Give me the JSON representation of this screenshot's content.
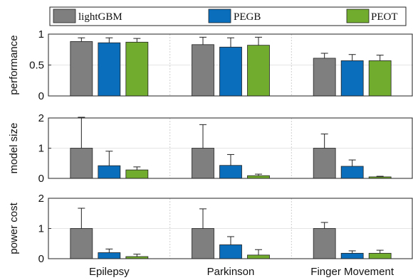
{
  "legend": {
    "items": [
      {
        "label": "lightGBM",
        "color": "#7f7f7f"
      },
      {
        "label": "PEGB",
        "color": "#0a6ebd"
      },
      {
        "label": "PEOT",
        "color": "#72ac2e"
      }
    ]
  },
  "chart_data": [
    {
      "type": "bar",
      "ylabel": "performance",
      "ylim": [
        0,
        1
      ],
      "yticks": [
        "0",
        "0.5",
        "1"
      ],
      "grid": true,
      "categories": [
        "Epilepsy",
        "Parkinson",
        "Finger Movement"
      ],
      "series": [
        {
          "name": "lightGBM",
          "values": [
            0.88,
            0.83,
            0.61
          ],
          "errors": [
            0.06,
            0.12,
            0.08
          ]
        },
        {
          "name": "PEGB",
          "values": [
            0.86,
            0.79,
            0.57
          ],
          "errors": [
            0.08,
            0.15,
            0.1
          ]
        },
        {
          "name": "PEOT",
          "values": [
            0.87,
            0.82,
            0.57
          ],
          "errors": [
            0.06,
            0.13,
            0.09
          ]
        }
      ]
    },
    {
      "type": "bar",
      "ylabel": "model size",
      "ylim": [
        0,
        2
      ],
      "yticks": [
        "0",
        "1",
        "2"
      ],
      "grid": true,
      "categories": [
        "Epilepsy",
        "Parkinson",
        "Finger Movement"
      ],
      "series": [
        {
          "name": "lightGBM",
          "values": [
            1.0,
            1.0,
            1.0
          ],
          "errors": [
            1.05,
            0.78,
            0.47
          ]
        },
        {
          "name": "PEGB",
          "values": [
            0.42,
            0.43,
            0.4
          ],
          "errors": [
            0.48,
            0.36,
            0.21
          ]
        },
        {
          "name": "PEOT",
          "values": [
            0.28,
            0.09,
            0.05
          ],
          "errors": [
            0.1,
            0.05,
            0.02
          ]
        }
      ]
    },
    {
      "type": "bar",
      "ylabel": "power cost",
      "ylim": [
        0,
        2
      ],
      "yticks": [
        "0",
        "1",
        "2"
      ],
      "grid": true,
      "categories": [
        "Epilepsy",
        "Parkinson",
        "Finger Movement"
      ],
      "series": [
        {
          "name": "lightGBM",
          "values": [
            1.0,
            1.0,
            1.0
          ],
          "errors": [
            0.67,
            0.65,
            0.2
          ]
        },
        {
          "name": "PEGB",
          "values": [
            0.2,
            0.46,
            0.18
          ],
          "errors": [
            0.12,
            0.27,
            0.08
          ]
        },
        {
          "name": "PEOT",
          "values": [
            0.07,
            0.12,
            0.18
          ],
          "errors": [
            0.08,
            0.18,
            0.1
          ]
        }
      ]
    }
  ]
}
